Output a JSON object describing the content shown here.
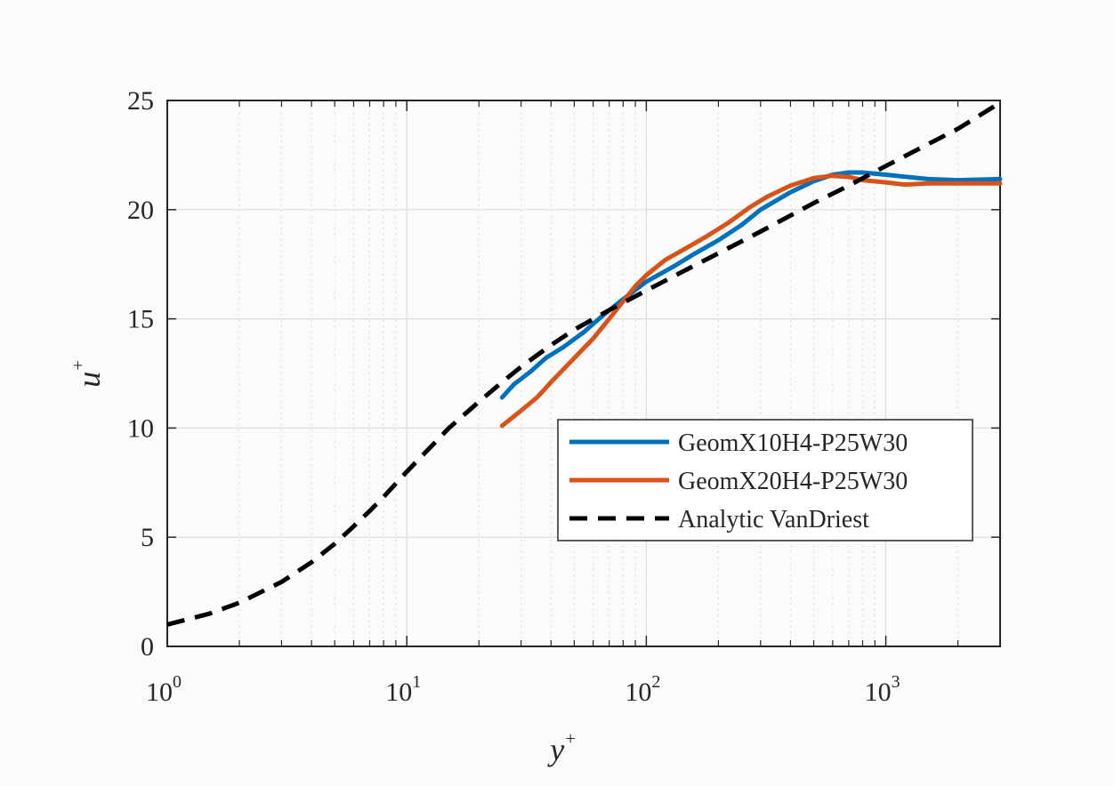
{
  "chart_data": {
    "type": "line",
    "xscale": "log",
    "xlim": [
      1,
      3000
    ],
    "ylim": [
      0,
      25
    ],
    "xlabel": "y",
    "xlabel_sup": "+",
    "ylabel": "u",
    "ylabel_sup": "+",
    "grid": true,
    "minor_grid": true,
    "legend_position": "lower-right",
    "x_ticks": [
      {
        "value": 1,
        "base": "10",
        "exp": "0"
      },
      {
        "value": 10,
        "base": "10",
        "exp": "1"
      },
      {
        "value": 100,
        "base": "10",
        "exp": "2"
      },
      {
        "value": 1000,
        "base": "10",
        "exp": "3"
      }
    ],
    "y_ticks": [
      0,
      5,
      10,
      15,
      20,
      25
    ],
    "series": [
      {
        "name": "GeomX10H4-P25W30",
        "color": "#0072BD",
        "dash": "solid",
        "x": [
          25,
          28,
          33,
          38,
          45,
          55,
          65,
          80,
          100,
          130,
          160,
          200,
          250,
          300,
          400,
          500,
          600,
          700,
          800,
          1000,
          1500,
          2000,
          3000
        ],
        "y": [
          11.4,
          12.0,
          12.6,
          13.2,
          13.7,
          14.4,
          15.1,
          15.9,
          16.7,
          17.4,
          18.0,
          18.6,
          19.3,
          20.0,
          20.8,
          21.3,
          21.6,
          21.7,
          21.7,
          21.6,
          21.4,
          21.35,
          21.4
        ]
      },
      {
        "name": "GeomX20H4-P25W30",
        "color": "#D95319",
        "dash": "solid",
        "x": [
          25,
          30,
          35,
          40,
          50,
          60,
          70,
          80,
          90,
          100,
          120,
          150,
          180,
          220,
          270,
          320,
          400,
          500,
          600,
          700,
          800,
          1000,
          1200,
          1500,
          2000,
          3000
        ],
        "y": [
          10.1,
          10.8,
          11.4,
          12.1,
          13.2,
          14.1,
          15.0,
          15.8,
          16.5,
          17.0,
          17.7,
          18.3,
          18.8,
          19.4,
          20.1,
          20.6,
          21.1,
          21.45,
          21.55,
          21.5,
          21.35,
          21.25,
          21.15,
          21.2,
          21.2,
          21.2
        ]
      },
      {
        "name": "Analytic VanDriest",
        "color": "#000000",
        "dash": "dashed",
        "x": [
          1,
          1.5,
          2,
          3,
          4,
          5,
          6,
          7,
          8,
          10,
          12,
          15,
          20,
          25,
          30,
          40,
          50,
          70,
          100,
          150,
          200,
          300,
          500,
          700,
          1000,
          1500,
          2000,
          3000
        ],
        "y": [
          1.0,
          1.5,
          2.0,
          2.95,
          3.85,
          4.7,
          5.5,
          6.2,
          6.85,
          8.0,
          8.9,
          10.0,
          11.2,
          12.1,
          12.8,
          13.8,
          14.5,
          15.4,
          16.3,
          17.3,
          18.0,
          19.0,
          20.3,
          21.1,
          22.0,
          23.0,
          23.7,
          24.9
        ]
      }
    ]
  }
}
